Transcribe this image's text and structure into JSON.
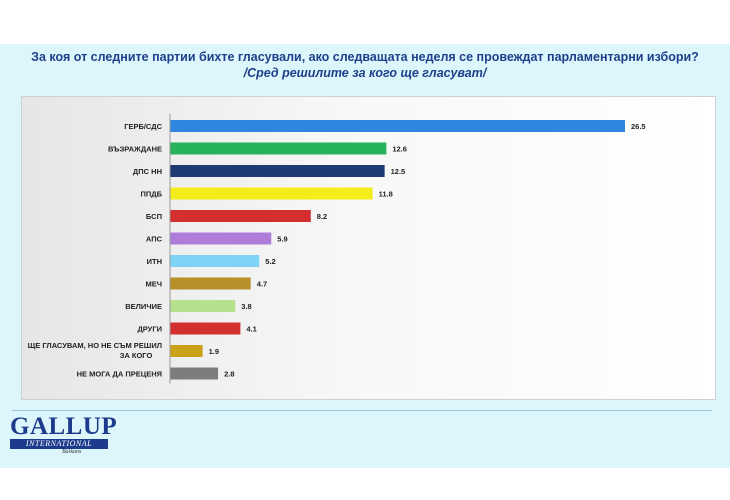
{
  "header": {
    "title": "За коя от следните партии бихте  гласували,  ако следващата неделя се провеждат парламентарни избори?",
    "subtitle": "/Сред решилите за кого ще гласуват/"
  },
  "logo": {
    "name": "GALLUP",
    "band": "INTERNATIONAL",
    "region": "Balkans"
  },
  "chart_data": {
    "type": "bar",
    "orientation": "horizontal",
    "title": "За коя от следните партии бихте  гласували,  ако следващата неделя се провеждат парламентарни избори?",
    "subtitle": "/Сред решилите за кого ще гласуват/",
    "categories": [
      "ГЕРБ/СДС",
      "ВЪЗРАЖДАНЕ",
      "ДПС НН",
      "ППДБ",
      "БСП",
      "АПС",
      "ИТН",
      "МЕЧ",
      "ВЕЛИЧИЕ",
      "ДРУГИ",
      "ЩЕ ГЛАСУВАМ, НО НЕ СЪМ РЕШИЛ ЗА КОГО",
      "НЕ МОГА ДА ПРЕЦЕНЯ"
    ],
    "values": [
      26.5,
      12.6,
      12.5,
      11.8,
      8.2,
      5.9,
      5.2,
      4.7,
      3.8,
      4.1,
      1.9,
      2.8
    ],
    "value_labels": [
      "26.5",
      "12.6",
      "12.5",
      "11.8",
      "8.2",
      "5.9",
      "5.2",
      "4.7",
      "3.8",
      "4.1",
      "1.9",
      "2.8"
    ],
    "colors": [
      "#2e86de",
      "#27b35a",
      "#1f3b73",
      "#f5ec1b",
      "#d32f2f",
      "#b07cd9",
      "#7fd3f7",
      "#b8902a",
      "#b5e08c",
      "#d32f2f",
      "#c9a21a",
      "#7d7d7d"
    ],
    "xlim": [
      0,
      28
    ],
    "grid": false,
    "legend": "none"
  }
}
